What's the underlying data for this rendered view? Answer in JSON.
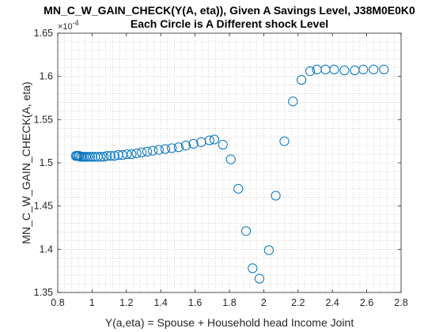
{
  "chart_data": {
    "type": "scatter",
    "title": "MN_C_W_GAIN_CHECK(Y(A, eta)), Given A Savings Level, J38M0E0K0",
    "subtitle": "Each Circle is A Different shock Level",
    "xlabel": "Y(a,eta) = Spouse + Household head Income Joint",
    "ylabel": "MN_C_W_GAIN_CHECK(A, eta)",
    "y_exponent_label": "×10",
    "y_exponent_power": "-4",
    "xlim": [
      0.8,
      2.8
    ],
    "ylim": [
      1.35,
      1.65
    ],
    "y_scale_factor": 0.0001,
    "grid": "minor-dotted",
    "marker": "open-circle",
    "marker_color": "#0072BD",
    "x_ticks": [
      "0.8",
      "1",
      "1.2",
      "1.4",
      "1.6",
      "1.8",
      "2",
      "2.2",
      "2.4",
      "2.6",
      "2.8"
    ],
    "y_ticks": [
      "1.35",
      "1.4",
      "1.45",
      "1.5",
      "1.55",
      "1.6",
      "1.65"
    ],
    "series": [
      {
        "x": [
          0.905,
          0.911,
          0.918,
          0.925,
          0.933,
          0.942,
          0.952,
          0.963,
          0.975,
          0.988,
          1.002,
          1.017,
          1.033,
          1.05,
          1.068,
          1.087,
          1.108,
          1.13,
          1.153,
          1.177,
          1.203,
          1.23,
          1.259,
          1.289,
          1.321,
          1.354,
          1.389,
          1.426,
          1.464,
          1.504,
          1.546,
          1.59,
          1.636,
          1.684,
          1.712,
          1.762,
          1.808,
          1.852,
          1.897,
          1.935,
          1.975,
          2.03,
          2.07,
          2.12,
          2.17,
          2.22,
          2.27,
          2.31,
          2.36,
          2.41,
          2.47,
          2.53,
          2.58,
          2.64,
          2.7
        ],
        "y": [
          1.508,
          1.508,
          1.508,
          1.508,
          1.507,
          1.507,
          1.507,
          1.507,
          1.507,
          1.507,
          1.507,
          1.507,
          1.507,
          1.507,
          1.507,
          1.508,
          1.508,
          1.508,
          1.509,
          1.509,
          1.51,
          1.51,
          1.511,
          1.512,
          1.513,
          1.514,
          1.515,
          1.516,
          1.517,
          1.518,
          1.52,
          1.522,
          1.524,
          1.526,
          1.527,
          1.521,
          1.504,
          1.47,
          1.421,
          1.378,
          1.366,
          1.399,
          1.462,
          1.525,
          1.571,
          1.596,
          1.606,
          1.608,
          1.608,
          1.608,
          1.607,
          1.607,
          1.608,
          1.608,
          1.608
        ]
      }
    ]
  }
}
